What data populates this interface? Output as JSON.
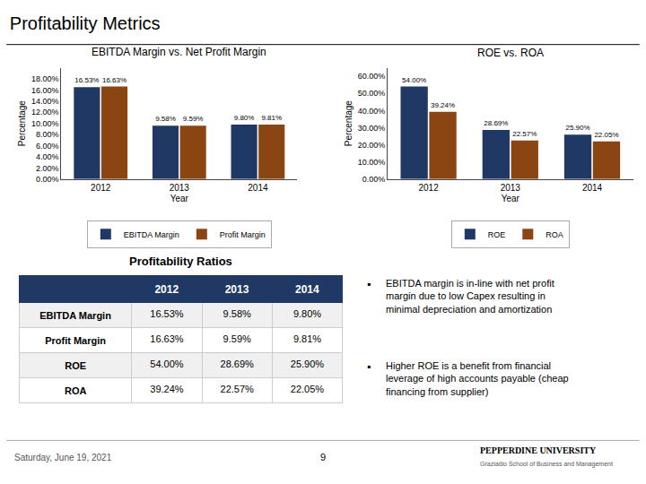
{
  "title": "Profitability Metrics",
  "chart_data": [
    {
      "type": "bar",
      "title": "EBITDA Margin vs. Net Profit Margin",
      "categories": [
        "2012",
        "2013",
        "2014"
      ],
      "series": [
        {
          "name": "EBITDA Margin",
          "color": "#1F3864",
          "values": [
            16.53,
            9.58,
            9.8
          ],
          "value_labels": [
            "16.53%",
            "9.58%",
            "9.80%"
          ]
        },
        {
          "name": "Profit Margin",
          "color": "#8B4513",
          "values": [
            16.63,
            9.59,
            9.81
          ],
          "value_labels": [
            "16.63%",
            "9.59%",
            "9.81%"
          ]
        }
      ],
      "xlabel": "Year",
      "ylabel": "Percentage",
      "ylim": [
        0,
        20
      ],
      "yticks": [
        {
          "value": 0,
          "label": "0.00%"
        },
        {
          "value": 2,
          "label": "2.00%"
        },
        {
          "value": 4,
          "label": "4.00%"
        },
        {
          "value": 6,
          "label": "6.00%"
        },
        {
          "value": 8,
          "label": "8.00%"
        },
        {
          "value": 10,
          "label": "10.00%"
        },
        {
          "value": 12,
          "label": "12.00%"
        },
        {
          "value": 14,
          "label": "14.00%"
        },
        {
          "value": 16,
          "label": "16.00%"
        },
        {
          "value": 18,
          "label": "18.00%"
        }
      ],
      "data_labels": true,
      "grid": false,
      "legend": "bottom"
    },
    {
      "type": "bar",
      "title": "ROE vs. ROA",
      "categories": [
        "2012",
        "2013",
        "2014"
      ],
      "series": [
        {
          "name": "ROE",
          "color": "#1F3864",
          "values": [
            54.0,
            28.69,
            25.9
          ],
          "value_labels": [
            "54.00%",
            "28.69%",
            "25.90%"
          ]
        },
        {
          "name": "ROA",
          "color": "#8B4513",
          "values": [
            39.24,
            22.57,
            22.05
          ],
          "value_labels": [
            "39.24%",
            "22.57%",
            "22.05%"
          ]
        }
      ],
      "xlabel": "Year",
      "ylabel": "Percentage",
      "ylim": [
        0,
        65
      ],
      "yticks": [
        {
          "value": 0,
          "label": "0.00%"
        },
        {
          "value": 10,
          "label": "10.00%"
        },
        {
          "value": 20,
          "label": "20.00%"
        },
        {
          "value": 30,
          "label": "30.00%"
        },
        {
          "value": 40,
          "label": "40.00%"
        },
        {
          "value": 50,
          "label": "50.00%"
        },
        {
          "value": 60,
          "label": "60.00%"
        }
      ],
      "data_labels": true,
      "grid": false,
      "legend": "bottom"
    },
    {
      "type": "table",
      "title": "Profitability Ratios",
      "color": "#1F3864",
      "columns": [
        null,
        "2012",
        "2013",
        "2014"
      ],
      "rows": [
        [
          "EBITDA Margin",
          "16.53%",
          "9.58%",
          "9.80%"
        ],
        [
          "Profit Margin",
          "16.63%",
          "9.59%",
          "9.81%"
        ],
        [
          "ROE",
          "54.00%",
          "28.69%",
          "25.90%"
        ],
        [
          "ROA",
          "39.24%",
          "22.57%",
          "22.05%"
        ]
      ]
    }
  ],
  "bullet": "▪",
  "annotations": [
    "EBITDA margin is in-line with net profit\nmargin due to low Capex resulting in\nminimal depreciation and amortization",
    "Higher ROE is a benefit from financial\nleverage of high accounts payable (cheap\nfinancing from supplier)"
  ],
  "footer": {
    "left": "Saturday, June 19, 2021",
    "center": "9",
    "right": [
      "PEPPERDINE UNIVERSITY",
      "Graziadio School of Business and Management"
    ]
  }
}
